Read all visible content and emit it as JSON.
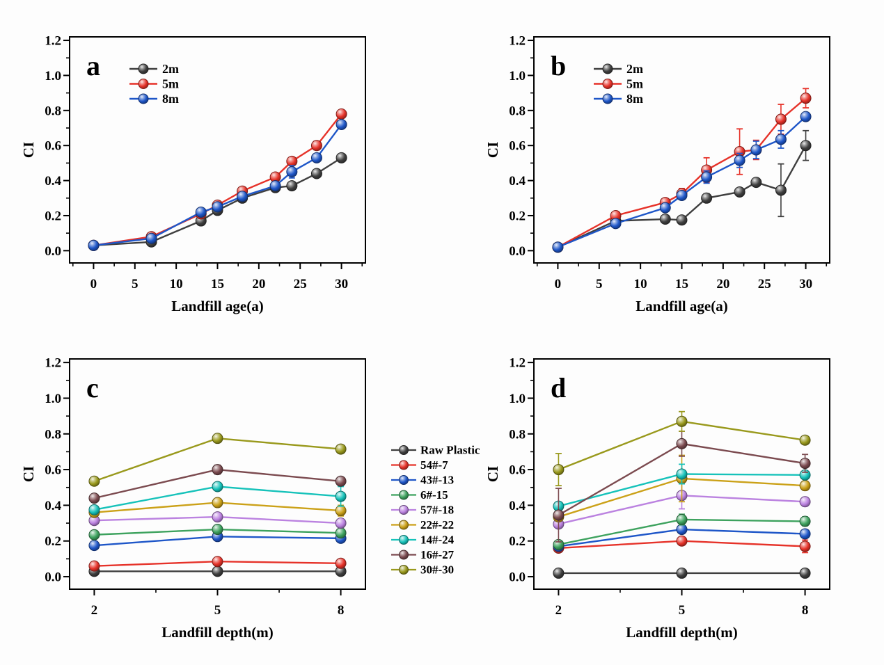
{
  "figure": {
    "background": "#fdfdfd",
    "ink": "#000000"
  },
  "chart_data": [
    {
      "id": "a",
      "type": "line",
      "panel_label": "a",
      "xlabel": "Landfill age(a)",
      "ylabel": "CI",
      "xlim": [
        -2.9,
        32.9
      ],
      "ylim": [
        -0.07,
        1.22
      ],
      "x_ticks": [
        0,
        5,
        10,
        15,
        20,
        25,
        30
      ],
      "x_minor_ticks": [
        -2.5,
        2.5,
        7.5,
        12.5,
        17.5,
        22.5,
        27.5,
        32.5
      ],
      "y_ticks": [
        0.0,
        0.2,
        0.4,
        0.6,
        0.8,
        1.0,
        1.2
      ],
      "y_minor_ticks": [
        0.1,
        0.3,
        0.5,
        0.7,
        0.9,
        1.1
      ],
      "grid": false,
      "legend_position": "inside-top-left",
      "x": [
        0,
        7,
        13,
        15,
        18,
        22,
        24,
        27,
        30
      ],
      "series": [
        {
          "name": "2m",
          "color": "#3f3f3f",
          "values": [
            0.03,
            0.05,
            0.17,
            0.23,
            0.3,
            0.36,
            0.37,
            0.44,
            0.53
          ],
          "errors": [
            0.005,
            0.01,
            0.02,
            0.015,
            0.01,
            0.01,
            0.015,
            0.015,
            0.02
          ]
        },
        {
          "name": "5m",
          "color": "#e63229",
          "values": [
            0.03,
            0.08,
            0.21,
            0.26,
            0.34,
            0.42,
            0.51,
            0.6,
            0.78
          ],
          "errors": [
            0.005,
            0.01,
            0.015,
            0.02,
            0.015,
            0.02,
            0.02,
            0.025,
            0.02
          ]
        },
        {
          "name": "8m",
          "color": "#1e56c8",
          "values": [
            0.03,
            0.07,
            0.22,
            0.25,
            0.31,
            0.37,
            0.45,
            0.53,
            0.72
          ],
          "errors": [
            0.005,
            0.01,
            0.02,
            0.015,
            0.015,
            0.015,
            0.035,
            0.02,
            0.02
          ]
        }
      ]
    },
    {
      "id": "b",
      "type": "line",
      "panel_label": "b",
      "xlabel": "Landfill age(a)",
      "ylabel": "CI",
      "xlim": [
        -2.9,
        32.9
      ],
      "ylim": [
        -0.07,
        1.22
      ],
      "x_ticks": [
        0,
        5,
        10,
        15,
        20,
        25,
        30
      ],
      "x_minor_ticks": [
        -2.5,
        2.5,
        7.5,
        12.5,
        17.5,
        22.5,
        27.5,
        32.5
      ],
      "y_ticks": [
        0.0,
        0.2,
        0.4,
        0.6,
        0.8,
        1.0,
        1.2
      ],
      "y_minor_ticks": [
        0.1,
        0.3,
        0.5,
        0.7,
        0.9,
        1.1
      ],
      "grid": false,
      "legend_position": "inside-top-left",
      "x": [
        0,
        7,
        13,
        15,
        18,
        22,
        24,
        27,
        30
      ],
      "series": [
        {
          "name": "2m",
          "color": "#3f3f3f",
          "values": [
            0.02,
            0.17,
            0.18,
            0.175,
            0.3,
            0.335,
            0.39,
            0.345,
            0.6
          ],
          "errors": [
            0.005,
            0.015,
            0.015,
            0.015,
            0.025,
            0.02,
            0.02,
            0.15,
            0.085
          ]
        },
        {
          "name": "5m",
          "color": "#e63229",
          "values": [
            0.02,
            0.2,
            0.275,
            0.325,
            0.46,
            0.565,
            0.575,
            0.75,
            0.87
          ],
          "errors": [
            0.005,
            0.015,
            0.02,
            0.03,
            0.07,
            0.13,
            0.055,
            0.085,
            0.055
          ]
        },
        {
          "name": "8m",
          "color": "#1e56c8",
          "values": [
            0.02,
            0.155,
            0.245,
            0.315,
            0.42,
            0.515,
            0.575,
            0.635,
            0.765
          ],
          "errors": [
            0.005,
            0.01,
            0.02,
            0.02,
            0.035,
            0.04,
            0.05,
            0.05,
            0.02
          ]
        }
      ]
    },
    {
      "id": "c",
      "type": "line",
      "panel_label": "c",
      "xlabel": "Landfill depth(m)",
      "ylabel": "CI",
      "xlim": [
        1.4,
        8.6
      ],
      "ylim": [
        -0.07,
        1.22
      ],
      "x_ticks": [
        2,
        5,
        8
      ],
      "x_minor_ticks": [
        3.5,
        6.5
      ],
      "y_ticks": [
        0.0,
        0.2,
        0.4,
        0.6,
        0.8,
        1.0,
        1.2
      ],
      "y_minor_ticks": [
        0.1,
        0.3,
        0.5,
        0.7,
        0.9,
        1.1
      ],
      "grid": false,
      "legend_position": "shared-right",
      "x": [
        2,
        5,
        8
      ],
      "series": [
        {
          "name": "Raw Plastic",
          "color": "#3f3f3f",
          "values": [
            0.03,
            0.03,
            0.03
          ],
          "errors": [
            0.004,
            0.004,
            0.004
          ]
        },
        {
          "name": "54#-7",
          "color": "#e63229",
          "values": [
            0.06,
            0.085,
            0.075
          ],
          "errors": [
            0.012,
            0.015,
            0.015
          ]
        },
        {
          "name": "43#-13",
          "color": "#1e56c8",
          "values": [
            0.175,
            0.225,
            0.215
          ],
          "errors": [
            0.015,
            0.015,
            0.015
          ]
        },
        {
          "name": "6#-15",
          "color": "#3da25e",
          "values": [
            0.235,
            0.265,
            0.245
          ],
          "errors": [
            0.012,
            0.015,
            0.015
          ]
        },
        {
          "name": "57#-18",
          "color": "#bb82e0",
          "values": [
            0.315,
            0.335,
            0.3
          ],
          "errors": [
            0.015,
            0.015,
            0.015
          ]
        },
        {
          "name": "22#-22",
          "color": "#cba118",
          "values": [
            0.36,
            0.415,
            0.37
          ],
          "errors": [
            0.012,
            0.015,
            0.03
          ]
        },
        {
          "name": "14#-24",
          "color": "#16c2ba",
          "values": [
            0.375,
            0.505,
            0.45
          ],
          "errors": [
            0.015,
            0.02,
            0.055
          ]
        },
        {
          "name": "16#-27",
          "color": "#7b4a4f",
          "values": [
            0.44,
            0.6,
            0.535
          ],
          "errors": [
            0.015,
            0.025,
            0.02
          ]
        },
        {
          "name": "30#-30",
          "color": "#99991c",
          "values": [
            0.535,
            0.775,
            0.715
          ],
          "errors": [
            0.02,
            0.02,
            0.02
          ]
        }
      ]
    },
    {
      "id": "d",
      "type": "line",
      "panel_label": "d",
      "xlabel": "Landfill depth(m)",
      "ylabel": "CI",
      "xlim": [
        1.4,
        8.6
      ],
      "ylim": [
        -0.07,
        1.22
      ],
      "x_ticks": [
        2,
        5,
        8
      ],
      "x_minor_ticks": [
        3.5,
        6.5
      ],
      "y_ticks": [
        0.0,
        0.2,
        0.4,
        0.6,
        0.8,
        1.0,
        1.2
      ],
      "y_minor_ticks": [
        0.1,
        0.3,
        0.5,
        0.7,
        0.9,
        1.1
      ],
      "grid": false,
      "legend_position": "none",
      "x": [
        2,
        5,
        8
      ],
      "series": [
        {
          "name": "Raw Plastic",
          "color": "#3f3f3f",
          "values": [
            0.02,
            0.02,
            0.02
          ],
          "errors": [
            0.004,
            0.004,
            0.004
          ]
        },
        {
          "name": "54#-7",
          "color": "#e63229",
          "values": [
            0.16,
            0.2,
            0.17
          ],
          "errors": [
            0.01,
            0.015,
            0.035
          ]
        },
        {
          "name": "43#-13",
          "color": "#1e56c8",
          "values": [
            0.17,
            0.265,
            0.24
          ],
          "errors": [
            0.01,
            0.02,
            0.02
          ]
        },
        {
          "name": "6#-15",
          "color": "#3da25e",
          "values": [
            0.18,
            0.32,
            0.31
          ],
          "errors": [
            0.015,
            0.03,
            0.025
          ]
        },
        {
          "name": "57#-18",
          "color": "#bb82e0",
          "values": [
            0.295,
            0.455,
            0.42
          ],
          "errors": [
            0.02,
            0.075,
            0.025
          ]
        },
        {
          "name": "22#-22",
          "color": "#cba118",
          "values": [
            0.335,
            0.55,
            0.51
          ],
          "errors": [
            0.02,
            0.13,
            0.025
          ]
        },
        {
          "name": "14#-24",
          "color": "#16c2ba",
          "values": [
            0.395,
            0.575,
            0.57
          ],
          "errors": [
            0.02,
            0.055,
            0.02
          ]
        },
        {
          "name": "16#-27",
          "color": "#7b4a4f",
          "values": [
            0.345,
            0.745,
            0.635
          ],
          "errors": [
            0.15,
            0.07,
            0.05
          ]
        },
        {
          "name": "30#-30",
          "color": "#99991c",
          "values": [
            0.6,
            0.87,
            0.765
          ],
          "errors": [
            0.09,
            0.055,
            0.02
          ]
        }
      ]
    }
  ],
  "shared_legend": {
    "items": [
      "Raw Plastic",
      "54#-7",
      "43#-13",
      "6#-15",
      "57#-18",
      "22#-22",
      "14#-24",
      "16#-27",
      "30#-30"
    ]
  }
}
